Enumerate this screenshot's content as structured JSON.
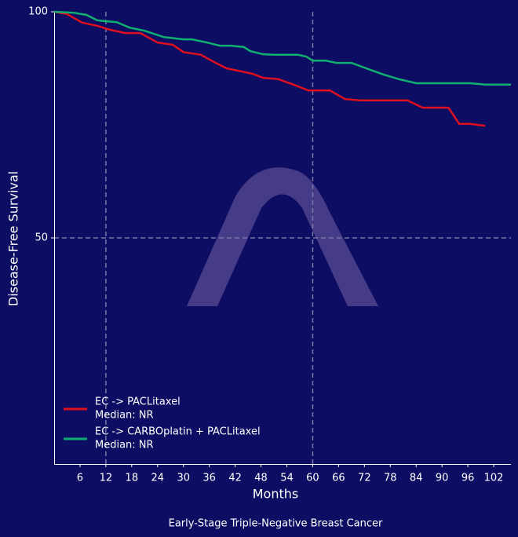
{
  "chart_data": {
    "type": "line",
    "title": "Early-Stage Triple-Negative Breast Cancer",
    "x_label": "Months",
    "y_label": "Disease-Free Survival",
    "xlim": [
      0,
      106
    ],
    "ylim": [
      0,
      100
    ],
    "xticks": [
      6,
      12,
      18,
      24,
      30,
      36,
      42,
      48,
      54,
      60,
      66,
      72,
      78,
      84,
      90,
      96,
      102
    ],
    "yticks": [
      50,
      100
    ],
    "reference_x": [
      12,
      60
    ],
    "reference_y": [
      50
    ],
    "legend": "lower left",
    "series": [
      {
        "name": "EC -> PACLitaxel",
        "median": "Median: NR",
        "color": "#e0101e",
        "x": [
          0,
          3,
          6.5,
          10,
          13,
          16.5,
          20,
          24,
          27.5,
          30,
          34,
          36.5,
          40,
          46,
          48.5,
          52,
          55.5,
          59,
          64,
          67.5,
          71,
          82,
          85.5,
          91.5,
          94,
          96.5,
          100
        ],
        "values": [
          100,
          99.5,
          97.6,
          96.9,
          96,
          95.3,
          95.3,
          93.2,
          92.7,
          91.1,
          90.5,
          89.2,
          87.5,
          86.3,
          85.4,
          85.1,
          83.9,
          82.6,
          82.6,
          80.7,
          80.4,
          80.4,
          78.8,
          78.8,
          75.2,
          75.2,
          74.8
        ]
      },
      {
        "name": "EC -> CARBOplatin + PACLitaxel",
        "median": "Median: NR",
        "color": "#10b070",
        "x": [
          0,
          4.5,
          7.5,
          10,
          14.5,
          17.5,
          21,
          25.5,
          30,
          32,
          35.5,
          38.5,
          41,
          44,
          45.5,
          48.5,
          51,
          56.5,
          58.5,
          60,
          63,
          65.5,
          69,
          73,
          76.5,
          80,
          84,
          96.5,
          100,
          106
        ],
        "values": [
          100,
          99.8,
          99.3,
          98.1,
          97.7,
          96.5,
          95.8,
          94.4,
          93.9,
          93.9,
          93.2,
          92.5,
          92.5,
          92.2,
          91.3,
          90.6,
          90.5,
          90.5,
          90.1,
          89.2,
          89.2,
          88.7,
          88.7,
          87.3,
          86.1,
          85.1,
          84.2,
          84.2,
          83.9,
          83.9
        ]
      }
    ]
  }
}
